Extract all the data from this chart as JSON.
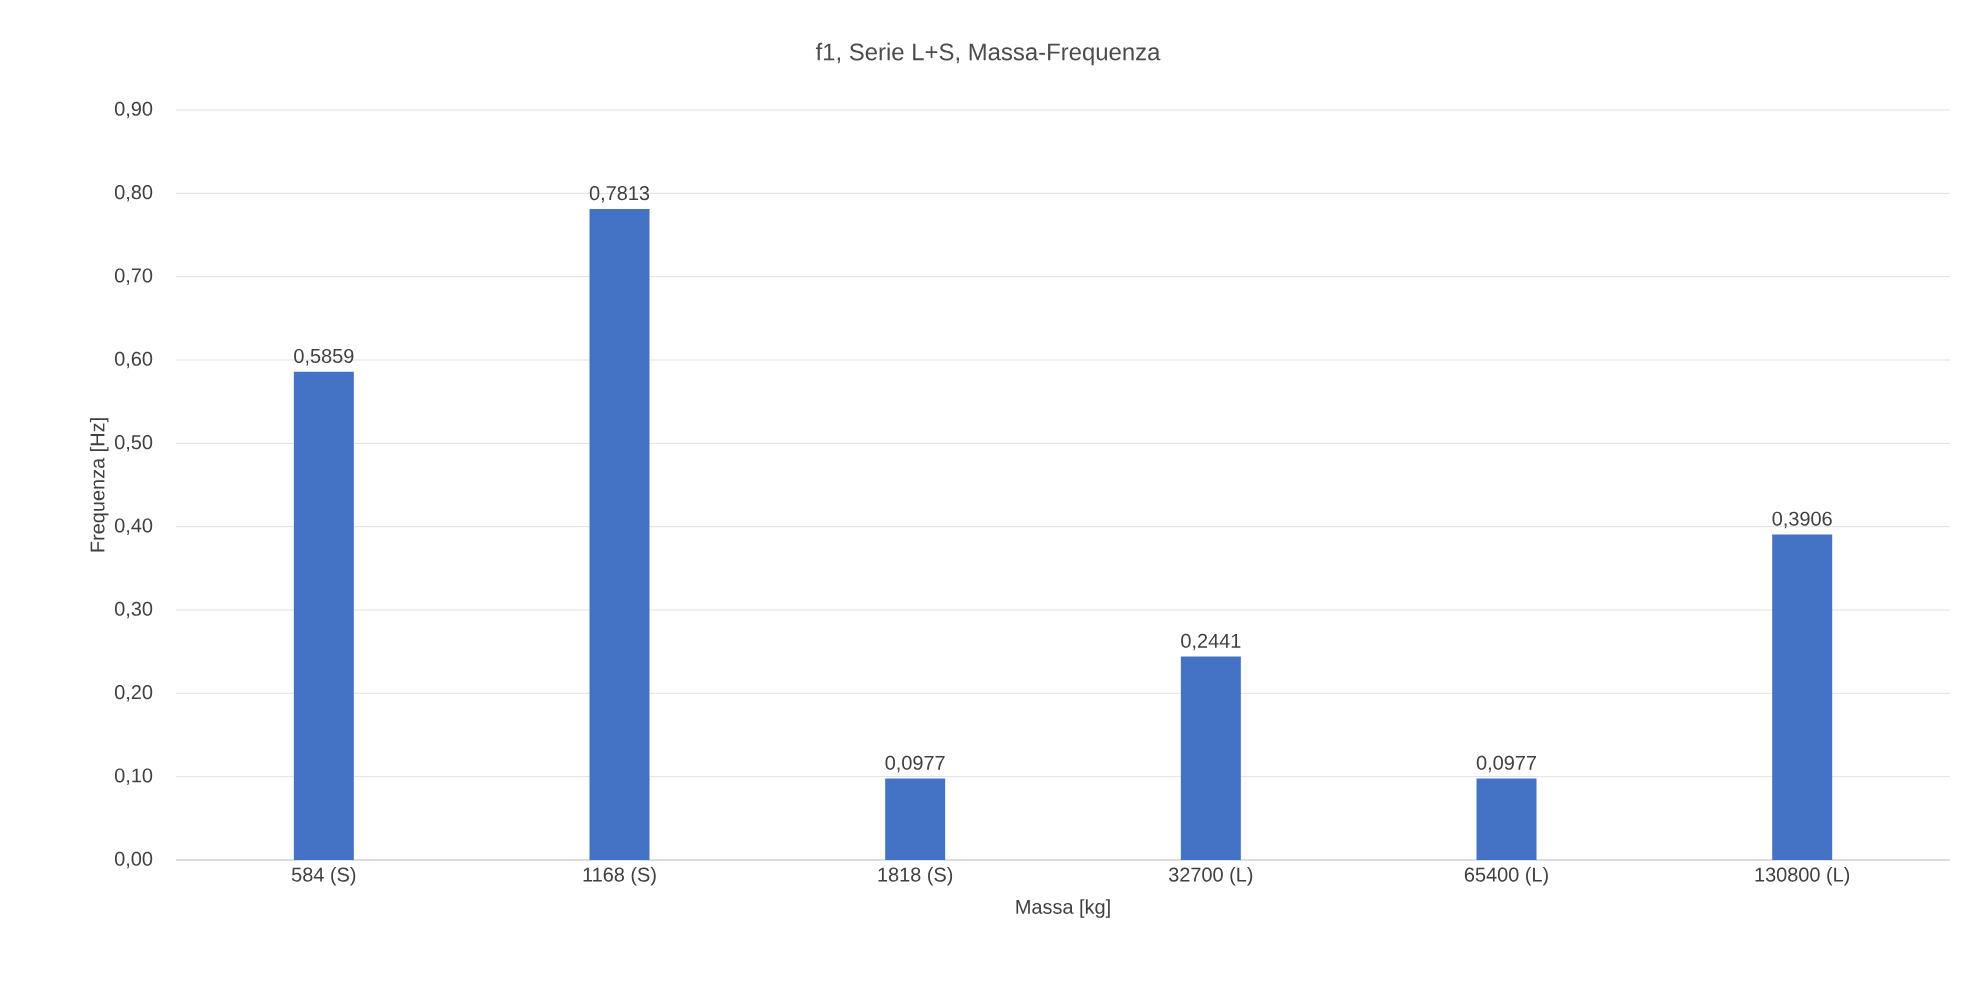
{
  "chart_data": {
    "type": "bar",
    "title": "f1, Serie L+S, Massa-Frequenza",
    "xlabel": "Massa [kg]",
    "ylabel": "Frequenza [Hz]",
    "categories": [
      "584 (S)",
      "1168 (S)",
      "1818 (S)",
      "32700 (L)",
      "65400 (L)",
      "130800 (L)"
    ],
    "values": [
      0.5859,
      0.7813,
      0.0977,
      0.2441,
      0.0977,
      0.3906
    ],
    "value_labels": [
      "0,5859",
      "0,7813",
      "0,0977",
      "0,2441",
      "0,0977",
      "0,3906"
    ],
    "color": "#4472c4",
    "ylim": [
      0,
      0.9
    ],
    "yticks": [
      {
        "value": 0,
        "label": "0,00"
      },
      {
        "value": 0.1,
        "label": "0,10"
      },
      {
        "value": 0.2,
        "label": "0,20"
      },
      {
        "value": 0.3,
        "label": "0,30"
      },
      {
        "value": 0.4,
        "label": "0,40"
      },
      {
        "value": 0.5,
        "label": "0,50"
      },
      {
        "value": 0.6,
        "label": "0,60"
      },
      {
        "value": 0.7,
        "label": "0,70"
      },
      {
        "value": 0.8,
        "label": "0,80"
      },
      {
        "value": 0.9,
        "label": "0,90"
      }
    ],
    "grid": "y"
  }
}
